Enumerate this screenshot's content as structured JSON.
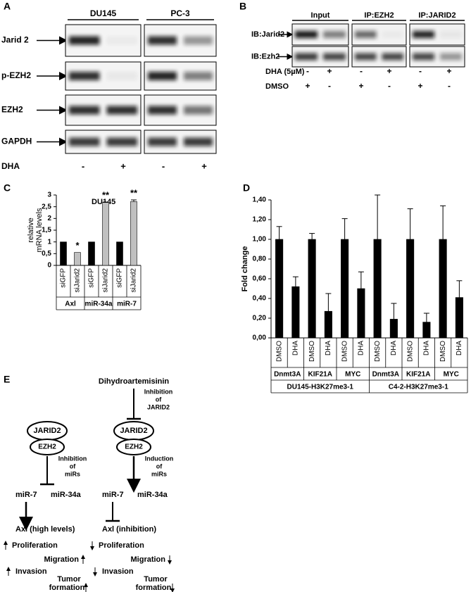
{
  "panel_a": {
    "label": "A",
    "cell_lines": [
      "DU145",
      "PC-3"
    ],
    "rows": [
      "Jarid 2",
      "p-EZH2",
      "EZH2",
      "GAPDH"
    ],
    "treatment": "DHA",
    "treatment_signs": [
      "-",
      "+",
      "-",
      "+"
    ]
  },
  "panel_b": {
    "label": "B",
    "columns": [
      "Input",
      "IP:EZH2",
      "IP:JARID2"
    ],
    "rows": [
      "IB:Jarid2",
      "IB:Ezh2"
    ],
    "conditions": [
      {
        "name": "DHA (5µM)",
        "signs": [
          "-",
          "+",
          "-",
          "+",
          "-",
          "+"
        ]
      },
      {
        "name": "DMSO",
        "signs": [
          "+",
          "-",
          "+",
          "-",
          "+",
          "-"
        ]
      }
    ]
  },
  "chart_data": [
    {
      "type": "bar",
      "label": "C",
      "title": "DU145",
      "y_label": [
        "relative",
        "mRNA levels"
      ],
      "categories": [
        "siGFP",
        "siJarid2",
        "siGFP",
        "siJarid2",
        "siGFP",
        "siJarid2"
      ],
      "groups": [
        "Axl",
        "miR-34a",
        "miR-7"
      ],
      "values": [
        1,
        0.55,
        1,
        2.68,
        1,
        2.72
      ],
      "errors": [
        null,
        null,
        null,
        0.02,
        null,
        0.07
      ],
      "significance": [
        null,
        "*",
        null,
        "**",
        null,
        "**"
      ],
      "colors": [
        "#000000",
        "#c0c0c0",
        "#000000",
        "#c0c0c0",
        "#000000",
        "#c0c0c0"
      ],
      "ylim": [
        0,
        3
      ],
      "yticks": [
        0,
        {
          "value": 0.5,
          "label": "0,5"
        },
        1,
        {
          "value": 1.5,
          "label": "1,5"
        },
        2,
        {
          "value": 2.5,
          "label": "2,5"
        },
        3
      ]
    },
    {
      "type": "bar",
      "label": "D",
      "y_label": "Fold change",
      "categories": [
        "DMSO",
        "DHA",
        "DMSO",
        "DHA",
        "DMSO",
        "DHA",
        "DMSO",
        "DHA",
        "DMSO",
        "DHA",
        "DMSO",
        "DHA"
      ],
      "subgroups": [
        "Dnmt3A",
        "KIF21A",
        "MYC",
        "Dnmt3A",
        "KIF21A",
        "MYC"
      ],
      "groups": [
        "DU145-H3K27me3-1",
        "C4-2-H3K27me3-1"
      ],
      "values": [
        1,
        0.52,
        1,
        0.27,
        1,
        0.5,
        1,
        0.19,
        1,
        0.16,
        1,
        0.41
      ],
      "errors": [
        0.13,
        0.1,
        0.06,
        0.18,
        0.21,
        0.17,
        0.45,
        0.16,
        0.31,
        0.09,
        0.34,
        0.17
      ],
      "color": "#000000",
      "ylim": [
        0,
        1.4
      ],
      "yticks": [
        {
          "value": 0,
          "label": "0,00"
        },
        {
          "value": 0.2,
          "label": "0,20"
        },
        {
          "value": 0.4,
          "label": "0,40"
        },
        {
          "value": 0.6,
          "label": "0,60"
        },
        {
          "value": 0.8,
          "label": "0,80"
        },
        {
          "value": 1,
          "label": "1,00"
        },
        {
          "value": 1.2,
          "label": "1,20"
        },
        {
          "value": 1.4,
          "label": "1,40"
        }
      ]
    }
  ],
  "panel_e": {
    "label": "E",
    "drug": "Dihydroartemisinin",
    "drug_effect": [
      "Inhibition",
      "of",
      "JARID2"
    ],
    "left": {
      "complex": [
        "JARID2",
        "EZH2"
      ],
      "effect": [
        "Inhibition",
        "of",
        "miRs"
      ],
      "mirs": [
        "miR-7",
        "miR-34a"
      ],
      "target": "Axl (high levels)",
      "outcomes": [
        "Proliferation",
        "Migration",
        "Invasion",
        [
          "Tumor",
          "formation"
        ]
      ]
    },
    "right": {
      "complex": [
        "JARID2",
        "EZH2"
      ],
      "effect": [
        "Induction",
        "of",
        "miRs"
      ],
      "mirs": [
        "miR-7",
        "miR-34a"
      ],
      "target": "Axl (inhibition)",
      "outcomes": [
        "Proliferation",
        "Migration",
        "Invasion",
        [
          "Tumor",
          "formation"
        ]
      ]
    }
  }
}
